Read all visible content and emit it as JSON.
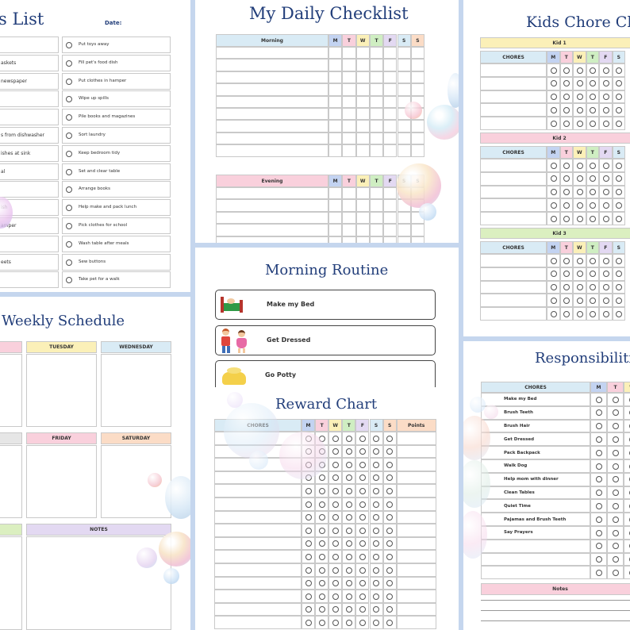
{
  "colors": {
    "blue": "#d9ebf5",
    "pink": "#f9d0dc",
    "yellow": "#fbf0b8",
    "green": "#dbefc0",
    "purple": "#e3d9f2",
    "peach": "#fbdcc6",
    "cyan": "#d2ecee",
    "day_blue": "#c3d3f1",
    "day_green": "#cfeec2"
  },
  "chores_list": {
    "title": "s List",
    "date_label": "Date:",
    "left_items": [
      "",
      "askets",
      "newspaper",
      "",
      "",
      "s from dishwasher",
      "ishes at sink",
      "al",
      "",
      "ish",
      "amper",
      "",
      "eets",
      ""
    ],
    "right_items": [
      "Put toys away",
      "Fill pet's food dish",
      "Put clothes in hamper",
      "Wipe up spills",
      "Pile books and magazines",
      "Sort laundry",
      "Keep bedroom tidy",
      "Set and clear table",
      "Arrange books",
      "Help make and pack lunch",
      "Pick clothes for school",
      "Wash table after meals",
      "Sew buttons",
      "Take pet for a walk"
    ]
  },
  "daily_checklist": {
    "title": "My Daily Checklist",
    "morning_label": "Morning",
    "evening_label": "Evening",
    "days": [
      "M",
      "T",
      "W",
      "T",
      "F",
      "S",
      "S"
    ]
  },
  "kids_chore": {
    "title": "Kids Chore Ch",
    "kids": [
      "Kid 1",
      "Kid 2",
      "Kid 3"
    ],
    "chores_label": "CHORES",
    "days": [
      "M",
      "T",
      "W",
      "T",
      "F",
      "S"
    ]
  },
  "weekly": {
    "title": "Weekly Schedule",
    "days": [
      "TUESDAY",
      "WEDNESDAY",
      "FRIDAY",
      "SATURDAY"
    ],
    "notes_label": "NOTES"
  },
  "morning_routine": {
    "title": "Morning Routine",
    "items": [
      "Make my Bed",
      "Get Dressed",
      "Go Potty"
    ]
  },
  "reward_chart": {
    "title": "Reward Chart",
    "chores_label": "CHORES",
    "points_label": "Points",
    "days": [
      "M",
      "T",
      "W",
      "T",
      "F",
      "S",
      "S"
    ]
  },
  "responsibilities": {
    "title": "Responsibiliti",
    "chores_label": "CHORES",
    "days": [
      "M",
      "T",
      "W"
    ],
    "items": [
      "Make my Bed",
      "Brush Teeth",
      "Brush Hair",
      "Get Dressed",
      "Pack Backpack",
      "Walk Dog",
      "Help mom with dinner",
      "Clean Tables",
      "Quiet Time",
      "Pajamas and Brush Teeth",
      "Say Prayers",
      "",
      "",
      ""
    ],
    "notes_label": "Notes"
  }
}
